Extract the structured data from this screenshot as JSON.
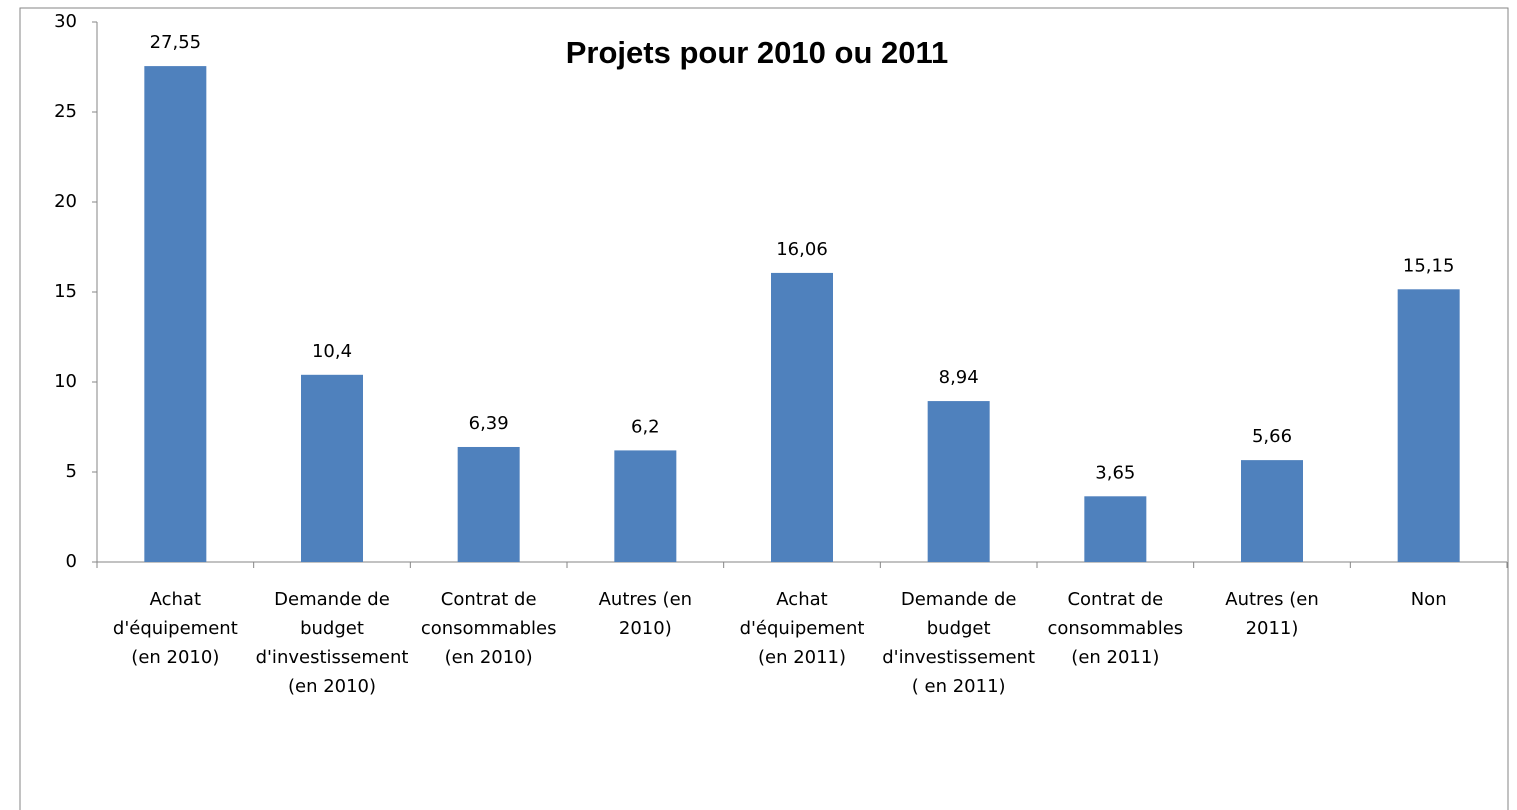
{
  "chart_data": {
    "type": "bar",
    "title": "Projets pour 2010 ou 2011",
    "categories": [
      [
        "Achat",
        "d'équipement",
        "(en 2010)"
      ],
      [
        "Demande de",
        "budget",
        "d'investissement",
        "(en 2010)"
      ],
      [
        "Contrat de",
        "consommables",
        "(en 2010)"
      ],
      [
        "Autres (en",
        "2010)"
      ],
      [
        "Achat",
        "d'équipement",
        "(en 2011)"
      ],
      [
        "Demande de",
        "budget",
        "d'investissement",
        "( en 2011)"
      ],
      [
        "Contrat de",
        "consommables",
        "(en 2011)"
      ],
      [
        "Autres (en",
        "2011)"
      ],
      [
        "Non"
      ]
    ],
    "values": [
      27.55,
      10.4,
      6.39,
      6.2,
      16.06,
      8.94,
      3.65,
      5.66,
      15.15
    ],
    "value_labels": [
      "27,55",
      "10,4",
      "6,39",
      "6,2",
      "16,06",
      "8,94",
      "3,65",
      "5,66",
      "15,15"
    ],
    "color": "#4f81bd",
    "ylim": [
      0,
      30
    ],
    "yticks": [
      0,
      5,
      10,
      15,
      20,
      25,
      30
    ],
    "grid": false
  }
}
